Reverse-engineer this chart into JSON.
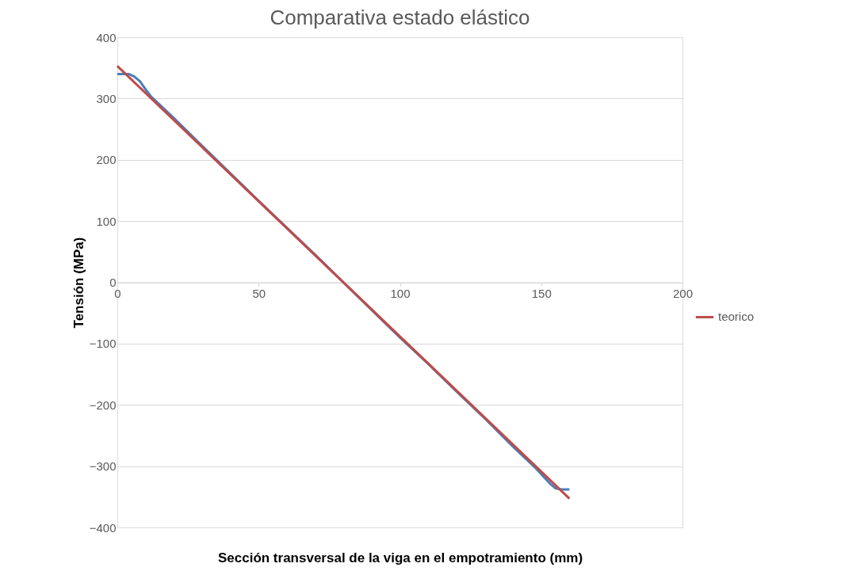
{
  "chart_data": {
    "type": "line",
    "title": "Comparativa estado elástico",
    "xlabel": "Sección transversal de la viga en el empotramiento (mm)",
    "ylabel": "Tensión (MPa)",
    "xlim": [
      0,
      200
    ],
    "xticks": [
      0,
      50,
      100,
      150,
      200
    ],
    "ylim": [
      -400,
      400
    ],
    "yticks": [
      -400,
      -300,
      -200,
      -100,
      0,
      100,
      200,
      300,
      400
    ],
    "grid": "y",
    "legend": "right",
    "line_style": "solid",
    "marker": "none",
    "series": [
      {
        "color": "#4a7ebb",
        "x": [
          0,
          4,
          6,
          8,
          10,
          12,
          20,
          30,
          40,
          50,
          60,
          70,
          80,
          90,
          100,
          110,
          120,
          130,
          140,
          148,
          151,
          153,
          155,
          157,
          160
        ],
        "values": [
          340,
          340,
          336,
          328,
          315,
          303,
          268,
          223,
          178,
          133,
          89,
          45,
          0,
          -45,
          -90,
          -133,
          -178,
          -222,
          -268,
          -303,
          -318,
          -328,
          -336,
          -338,
          -338
        ]
      },
      {
        "name": "teorico",
        "color": "#be4b48",
        "x": [
          0,
          160
        ],
        "values": [
          353,
          -353
        ]
      }
    ]
  }
}
